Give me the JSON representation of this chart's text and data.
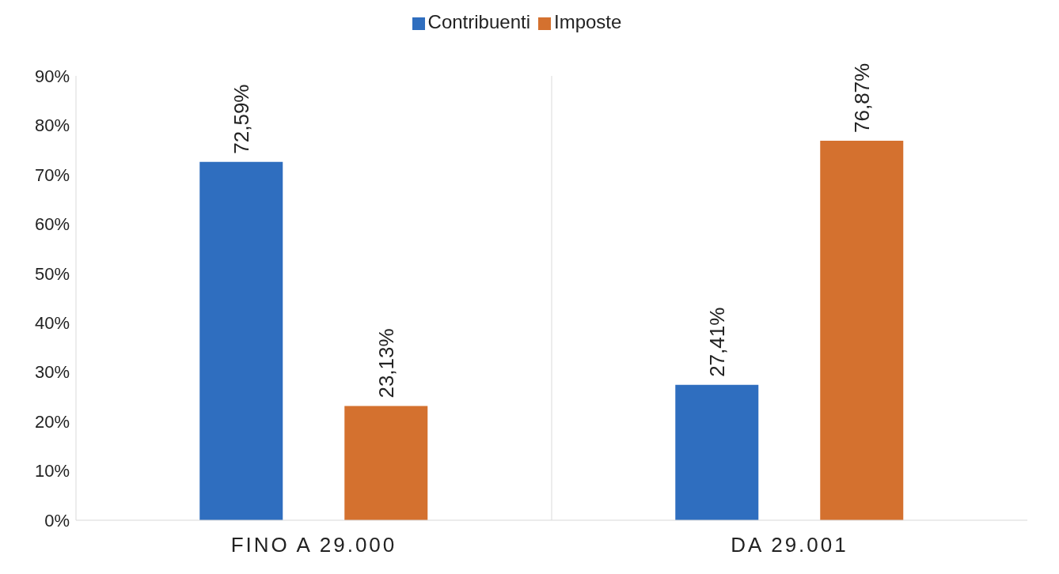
{
  "chart_data": {
    "type": "bar",
    "categories": [
      "FINO A 29.000",
      "DA 29.001"
    ],
    "series": [
      {
        "name": "Contribuenti",
        "color": "#2f6ebf",
        "values": [
          72.59,
          27.41
        ],
        "value_labels": [
          "72,59%",
          "27,41%"
        ]
      },
      {
        "name": "Imposte",
        "color": "#d4712f",
        "values": [
          23.13,
          76.87
        ],
        "value_labels": [
          "23,13%",
          "76,87%"
        ]
      }
    ],
    "ylim": [
      0,
      90
    ],
    "yticks": [
      {
        "value": 0,
        "label": "0%"
      },
      {
        "value": 10,
        "label": "10%"
      },
      {
        "value": 20,
        "label": "20%"
      },
      {
        "value": 30,
        "label": "30%"
      },
      {
        "value": 40,
        "label": "40%"
      },
      {
        "value": 50,
        "label": "50%"
      },
      {
        "value": 60,
        "label": "60%"
      },
      {
        "value": 70,
        "label": "70%"
      },
      {
        "value": 80,
        "label": "80%"
      },
      {
        "value": 90,
        "label": "90%"
      }
    ],
    "grid": "x",
    "legend": "top"
  }
}
